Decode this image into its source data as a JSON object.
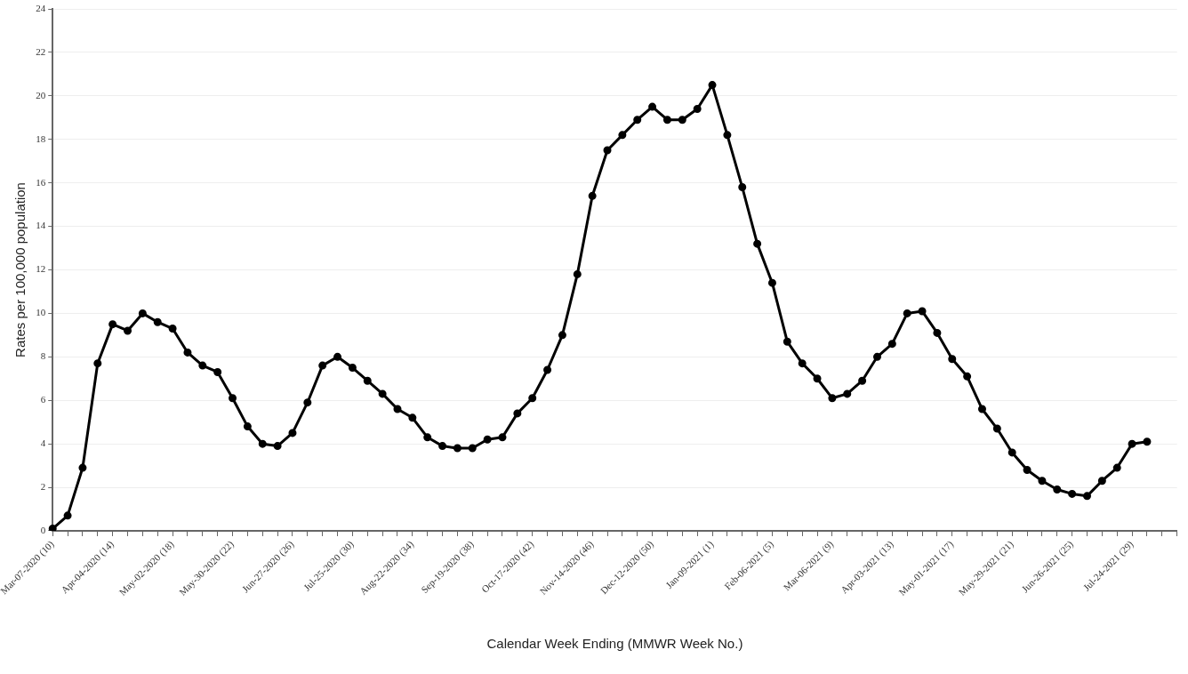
{
  "chart_data": {
    "type": "line",
    "xlabel": "Calendar Week Ending (MMWR Week No.)",
    "ylabel": "Rates per 100,000 population",
    "categories": [
      "Mar-07-2020 (10)",
      null,
      null,
      null,
      "Apr-04-2020 (14)",
      null,
      null,
      null,
      "May-02-2020 (18)",
      null,
      null,
      null,
      "May-30-2020 (22)",
      null,
      null,
      null,
      "Jun-27-2020 (26)",
      null,
      null,
      null,
      "Jul-25-2020 (30)",
      null,
      null,
      null,
      "Aug-22-2020 (34)",
      null,
      null,
      null,
      "Sep-19-2020 (38)",
      null,
      null,
      null,
      "Oct-17-2020 (42)",
      null,
      null,
      null,
      "Nov-14-2020 (46)",
      null,
      null,
      null,
      "Dec-12-2020 (50)",
      null,
      null,
      null,
      "Jan-09-2021 (1)",
      null,
      null,
      null,
      "Feb-06-2021 (5)",
      null,
      null,
      null,
      "Mar-06-2021 (9)",
      null,
      null,
      null,
      "Apr-03-2021 (13)",
      null,
      null,
      null,
      "May-01-2021 (17)",
      null,
      null,
      null,
      "May-29-2021 (21)",
      null,
      null,
      null,
      "Jun-26-2021 (25)",
      null,
      null,
      null,
      "Jul-24-2021 (29)",
      null,
      null,
      null
    ],
    "series": [
      {
        "color": "#000000",
        "values": [
          0.1,
          0.7,
          2.9,
          7.7,
          9.5,
          9.2,
          10.0,
          9.6,
          9.3,
          8.2,
          7.6,
          7.3,
          6.1,
          4.8,
          4.0,
          3.9,
          4.5,
          5.9,
          7.6,
          8.0,
          7.5,
          6.9,
          6.3,
          5.6,
          5.2,
          4.3,
          3.9,
          3.8,
          3.8,
          4.2,
          4.3,
          5.4,
          6.1,
          7.4,
          9.0,
          11.8,
          15.4,
          17.5,
          18.2,
          18.9,
          19.5,
          18.9,
          18.9,
          19.4,
          20.5,
          18.2,
          15.8,
          13.2,
          11.4,
          8.7,
          7.7,
          7.0,
          6.1,
          6.3,
          6.9,
          8.0,
          8.6,
          10.0,
          10.1,
          9.1,
          7.9,
          7.1,
          5.6,
          4.7,
          3.6,
          2.8,
          2.3,
          1.9,
          1.7,
          1.6,
          2.3,
          2.9,
          4.0,
          4.1,
          null,
          null
        ]
      }
    ],
    "ylim": [
      0,
      24
    ],
    "yticks": [
      0,
      2,
      4,
      6,
      8,
      10,
      12,
      14,
      16,
      18,
      20,
      22,
      24
    ],
    "grid": "y",
    "legend": false,
    "marker": "circle",
    "line_style": "solid"
  }
}
